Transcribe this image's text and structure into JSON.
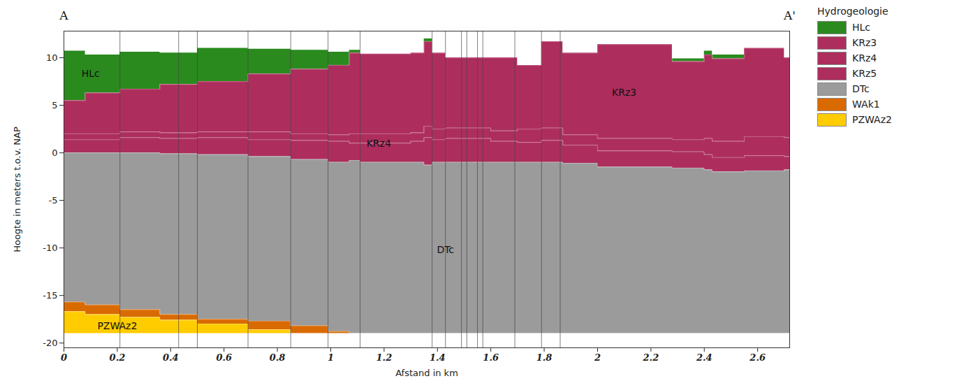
{
  "chart_data": {
    "type": "area",
    "xlabel": "Afstand in km",
    "ylabel": "Hoogte in meters t.o.v. NAP",
    "section_labels": [
      "A",
      "A'"
    ],
    "legend_title": "Hydrogeologie",
    "legend": "top-right",
    "grid": false,
    "xlim": [
      0,
      2.72
    ],
    "ylim": [
      -20.5,
      12.8
    ],
    "xticks": [
      0,
      0.2,
      0.4,
      0.6,
      0.8,
      1,
      1.2,
      1.4,
      1.6,
      1.8,
      2,
      2.2,
      2.4,
      2.6
    ],
    "yticks": [
      -20,
      -15,
      -10,
      -5,
      0,
      5,
      10
    ],
    "x": [
      0,
      0.08,
      0.21,
      0.36,
      0.5,
      0.69,
      0.85,
      0.99,
      1.07,
      1.11,
      1.3,
      1.35,
      1.38,
      1.43,
      1.6,
      1.7,
      1.79,
      1.87,
      2.0,
      2.28,
      2.4,
      2.43,
      2.55,
      2.7,
      2.72
    ],
    "series": [
      {
        "name": "HLc",
        "color": "#2a8a1e",
        "values": [
          10.7,
          10.3,
          10.6,
          10.5,
          11.0,
          10.9,
          10.8,
          10.6,
          10.8,
          10.4,
          10.5,
          12.0,
          10.5,
          10.0,
          10.0,
          9.2,
          11.7,
          10.5,
          11.4,
          9.9,
          10.7,
          10.3,
          11.0,
          10.0,
          10.0
        ],
        "bottom": [
          5.5,
          6.3,
          6.7,
          7.2,
          7.5,
          8.3,
          8.8,
          9.2,
          10.5,
          10.4,
          10.5,
          11.7,
          10.5,
          10.0,
          10.0,
          9.2,
          11.7,
          10.5,
          11.4,
          9.6,
          10.3,
          9.9,
          11.0,
          10.0,
          10.0
        ]
      },
      {
        "name": "KRz3",
        "color": "#ad2e5d",
        "values": [
          5.5,
          6.3,
          6.7,
          7.2,
          7.5,
          8.3,
          8.8,
          9.2,
          10.5,
          10.4,
          10.5,
          11.7,
          10.5,
          10.0,
          10.0,
          9.2,
          11.7,
          10.5,
          11.4,
          9.6,
          10.3,
          9.9,
          11.0,
          10.0,
          10.0
        ],
        "bottom": [
          2.0,
          2.0,
          2.2,
          2.1,
          2.2,
          2.2,
          2.0,
          1.9,
          2.0,
          2.0,
          2.1,
          2.8,
          2.5,
          2.6,
          2.3,
          2.5,
          2.6,
          1.9,
          1.5,
          1.4,
          1.5,
          1.2,
          1.7,
          1.6,
          1.6
        ]
      },
      {
        "name": "KRz4",
        "color": "#ad2e5d",
        "values": [
          2.0,
          2.0,
          2.2,
          2.1,
          2.2,
          2.2,
          2.0,
          1.9,
          2.0,
          2.0,
          2.1,
          2.8,
          2.5,
          2.6,
          2.3,
          2.5,
          2.6,
          1.9,
          1.5,
          1.4,
          1.5,
          1.2,
          1.7,
          1.6,
          1.6
        ],
        "bottom": [
          1.4,
          1.4,
          1.6,
          1.5,
          1.6,
          1.4,
          1.3,
          1.2,
          1.0,
          1.0,
          1.2,
          1.6,
          1.4,
          1.5,
          1.2,
          1.1,
          1.3,
          0.8,
          0.2,
          0.1,
          -0.2,
          -0.5,
          -0.3,
          -0.4,
          -0.4
        ]
      },
      {
        "name": "KRz5",
        "color": "#ad2e5d",
        "values": [
          1.4,
          1.4,
          1.6,
          1.5,
          1.6,
          1.4,
          1.3,
          1.2,
          1.0,
          1.0,
          1.2,
          1.6,
          1.4,
          1.5,
          1.2,
          1.1,
          1.3,
          0.8,
          0.2,
          0.1,
          -0.2,
          -0.5,
          -0.3,
          -0.4,
          -0.4
        ],
        "bottom": [
          0.0,
          0.0,
          0.0,
          -0.1,
          -0.2,
          -0.4,
          -0.7,
          -1.0,
          -0.8,
          -1.0,
          -1.0,
          -1.3,
          -1.0,
          -1.0,
          -1.0,
          -1.0,
          -1.0,
          -1.1,
          -1.5,
          -1.6,
          -1.8,
          -2.0,
          -1.9,
          -1.8,
          -1.8
        ]
      },
      {
        "name": "DTc",
        "color": "#9b9b9b",
        "values": [
          0.0,
          0.0,
          0.0,
          -0.1,
          -0.2,
          -0.4,
          -0.7,
          -1.0,
          -0.8,
          -1.0,
          -1.0,
          -1.3,
          -1.0,
          -1.0,
          -1.0,
          -1.0,
          -1.0,
          -1.1,
          -1.5,
          -1.6,
          -1.8,
          -2.0,
          -1.9,
          -1.8,
          -1.8
        ],
        "bottom": [
          -15.7,
          -16.0,
          -16.5,
          -17.0,
          -17.5,
          -17.7,
          -18.2,
          -18.8,
          -19,
          -19,
          -19,
          -19,
          -19,
          -19,
          -19,
          -19,
          -19,
          -19,
          -19,
          -19,
          -19,
          -19,
          -19,
          -19,
          -19
        ]
      },
      {
        "name": "WAk1",
        "color": "#d96a00",
        "values": [
          -15.7,
          -16.0,
          -16.5,
          -17.0,
          -17.5,
          -17.7,
          -18.2,
          -18.8,
          -19,
          -19,
          -19,
          -19,
          -19,
          -19,
          -19,
          -19,
          -19,
          -19,
          -19,
          -19,
          -19,
          -19,
          -19,
          -19,
          -19
        ],
        "bottom": [
          -16.7,
          -17.0,
          -17.3,
          -17.6,
          -18.0,
          -18.6,
          -19,
          -19,
          -19,
          -19,
          -19,
          -19,
          -19,
          -19,
          -19,
          -19,
          -19,
          -19,
          -19,
          -19,
          -19,
          -19,
          -19,
          -19,
          -19
        ]
      },
      {
        "name": "PZWAz2",
        "color": "#ffcc00",
        "values": [
          -16.7,
          -17.0,
          -17.3,
          -17.6,
          -18.0,
          -18.6,
          -19,
          -19,
          -19,
          -19,
          -19,
          -19,
          -19,
          -19,
          -19,
          -19,
          -19,
          -19,
          -19,
          -19,
          -19,
          -19,
          -19,
          -19,
          -19
        ],
        "bottom": [
          -19,
          -19,
          -19,
          -19,
          -19,
          -19,
          -19,
          -19,
          -19,
          -19,
          -19,
          -19,
          -19,
          -19,
          -19,
          -19,
          -19,
          -19,
          -19,
          -19,
          -19,
          -19,
          -19,
          -19,
          -19
        ]
      }
    ],
    "boreholes": [
      0.21,
      0.43,
      0.5,
      0.69,
      0.85,
      0.99,
      1.11,
      1.38,
      1.43,
      1.49,
      1.51,
      1.55,
      1.57,
      1.69,
      1.79,
      1.86
    ],
    "annotations": [
      {
        "text": "HLc",
        "x": 0.1,
        "y": 8.3
      },
      {
        "text": "KRz4",
        "x": 1.18,
        "y": 1.0
      },
      {
        "text": "KRz3",
        "x": 2.1,
        "y": 6.3
      },
      {
        "text": "DTc",
        "x": 1.43,
        "y": -10.2
      },
      {
        "text": "PZWAz2",
        "x": 0.2,
        "y": -18.2
      }
    ]
  }
}
